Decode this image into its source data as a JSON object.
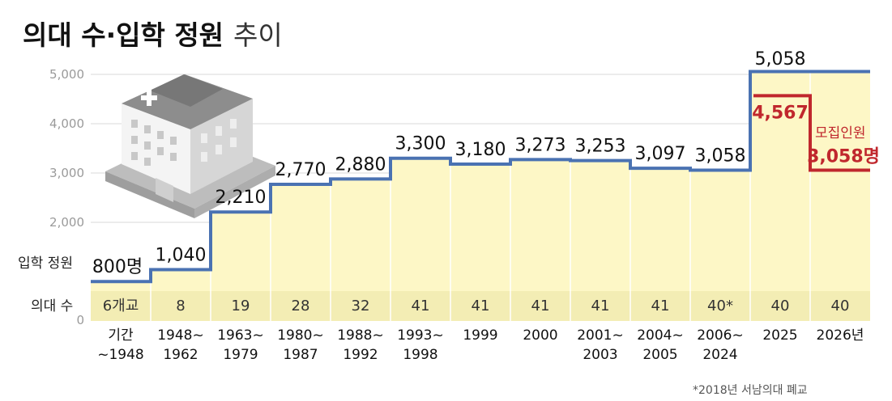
{
  "title": {
    "main": "의대 수·입학 정원",
    "sub": "추이"
  },
  "row_labels": {
    "enrollment": "입학 정원",
    "schools": "의대 수"
  },
  "note": "*2018년 서남의대 폐교",
  "colors": {
    "line": "#4a72b2",
    "recruit_line": "#c0272d",
    "area_fill": "#fdf7c6",
    "count_band": "#f3edb4",
    "grid": "#d9d9d9"
  },
  "chart_data": {
    "type": "area",
    "ylim": [
      0,
      5000
    ],
    "yticks": [
      "5,000",
      "4,000",
      "3,000",
      "2,000",
      "0"
    ],
    "categories": [
      [
        "기간",
        "~1948"
      ],
      [
        "1948~",
        "1962"
      ],
      [
        "1963~",
        "1979"
      ],
      [
        "1980~",
        "1987"
      ],
      [
        "1988~",
        "1992"
      ],
      [
        "1993~",
        "1998"
      ],
      [
        "1999"
      ],
      [
        "2000"
      ],
      [
        "2001~",
        "2003"
      ],
      [
        "2004~",
        "2005"
      ],
      [
        "2006~",
        "2024"
      ],
      [
        "2025"
      ],
      [
        "2026년"
      ]
    ],
    "values": [
      800,
      1040,
      2210,
      2770,
      2880,
      3300,
      3180,
      3273,
      3253,
      3097,
      3058,
      5058,
      5058
    ],
    "value_labels": [
      "800명",
      "1,040",
      "2,210",
      "2,770",
      "2,880",
      "3,300",
      "3,180",
      "3,273",
      "3,253",
      "3,097",
      "3,058",
      "5,058",
      ""
    ],
    "school_counts": [
      "6개교",
      "8",
      "19",
      "28",
      "32",
      "41",
      "41",
      "41",
      "41",
      "41",
      "40*",
      "40",
      "40"
    ],
    "recruitment": {
      "values": [
        4567,
        3058
      ],
      "labels": [
        "4,567",
        "3,058명"
      ],
      "label_title": "모집인원"
    }
  }
}
